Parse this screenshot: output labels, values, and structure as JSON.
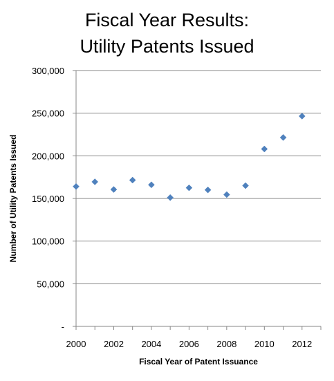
{
  "chart_data": {
    "type": "scatter",
    "title_lines": [
      "Fiscal Year Results:",
      "Utility Patents Issued"
    ],
    "xlabel": "Fiscal Year of Patent Issuance",
    "ylabel": "Number of Utility Patents Issued",
    "xlim": [
      2000,
      2013
    ],
    "ylim": [
      0,
      300000
    ],
    "x_ticks": [
      "2000",
      "2002",
      "2004",
      "2006",
      "2008",
      "2010",
      "2012"
    ],
    "y_ticks": [
      "-",
      "50,000",
      "100,000",
      "150,000",
      "200,000",
      "250,000",
      "300,000"
    ],
    "grid": "horizontal",
    "marker": "diamond",
    "x": [
      2000,
      2001,
      2002,
      2003,
      2004,
      2005,
      2006,
      2007,
      2008,
      2009,
      2010,
      2011,
      2012
    ],
    "y": [
      164000,
      169500,
      160500,
      171500,
      166000,
      151000,
      162500,
      160000,
      154500,
      165000,
      208000,
      221500,
      246500
    ]
  },
  "colors": {
    "marker": "#4F81BD",
    "grid": "#878787",
    "axis": "#878787"
  }
}
